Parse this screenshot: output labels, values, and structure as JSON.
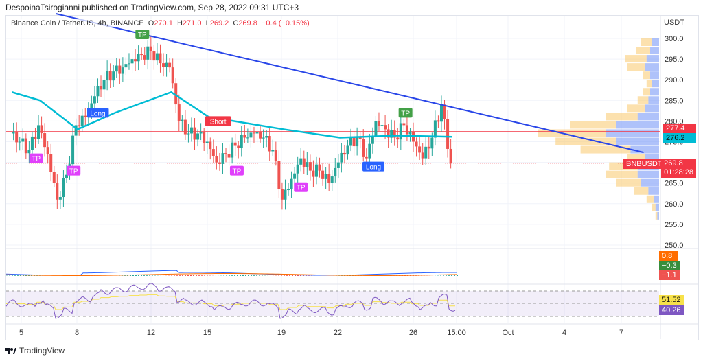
{
  "header": {
    "publisher": "DespoinaTsirogianni published on TradingView.com, Sep 28, 2022 09:31 UTC+3"
  },
  "legend": {
    "symbol": "Binance Coin / TetherUS, 4h, BINANCE",
    "open_label": "O",
    "open": "270.1",
    "high_label": "H",
    "high": "271.0",
    "low_label": "L",
    "low": "269.2",
    "close_label": "C",
    "close": "269.8",
    "change": "−0.4 (−0.15%)"
  },
  "price_axis": {
    "currency": "USDT",
    "ticks": [
      "300.0",
      "295.0",
      "290.0",
      "285.0",
      "280.0",
      "275.0",
      "270.0",
      "265.0",
      "260.0",
      "255.0",
      "250.0"
    ]
  },
  "time_axis": {
    "ticks": [
      "5",
      "8",
      "12",
      "15",
      "19",
      "22",
      "26",
      "15:00",
      "Oct",
      "4",
      "7"
    ]
  },
  "tags": {
    "hline": "277.4",
    "ma": "276.2",
    "symbol": "BNBUSDT",
    "price": "269.8",
    "countdown": "01:28:28",
    "macd": [
      "0.8",
      "−0.3",
      "−1.1"
    ],
    "rsi": [
      "51.52",
      "40.26"
    ]
  },
  "colors": {
    "up": "#26a69a",
    "down": "#ef5350",
    "ma": "#00bcd4",
    "trendline": "#2946e8",
    "hline": "#f23645",
    "rsi": "#7e57c2",
    "rsi_ma": "#f7e14a",
    "vp_up": "#f9c86b",
    "vp_down": "#6e8ff5"
  },
  "chart_data": {
    "type": "candlestick",
    "closes_12h": [
      [
        "Sep 4 12:00",
        277
      ],
      [
        "Sep 5",
        275
      ],
      [
        "Sep 5 12:00",
        273
      ],
      [
        "Sep 6",
        279
      ],
      [
        "Sep 6 12:00",
        272
      ],
      [
        "Sep 7",
        261
      ],
      [
        "Sep 7 12:00",
        267
      ],
      [
        "Sep 8",
        279
      ],
      [
        "Sep 8 12:00",
        281
      ],
      [
        "Sep 9",
        286
      ],
      [
        "Sep 9 12:00",
        290
      ],
      [
        "Sep 10",
        292
      ],
      [
        "Sep 10 12:00",
        293
      ],
      [
        "Sep 11",
        295
      ],
      [
        "Sep 11 12:00",
        296
      ],
      [
        "Sep 12",
        297
      ],
      [
        "Sep 12 12:00",
        294
      ],
      [
        "Sep 13",
        293
      ],
      [
        "Sep 13 12:00",
        280
      ],
      [
        "Sep 14",
        277
      ],
      [
        "Sep 14 12:00",
        277
      ],
      [
        "Sep 15",
        275
      ],
      [
        "Sep 15 12:00",
        270
      ],
      [
        "Sep 16",
        272
      ],
      [
        "Sep 16 12:00",
        274
      ],
      [
        "Sep 17",
        276
      ],
      [
        "Sep 17 12:00",
        277
      ],
      [
        "Sep 18",
        276
      ],
      [
        "Sep 18 12:00",
        273
      ],
      [
        "Sep 19",
        261
      ],
      [
        "Sep 19 12:00",
        266
      ],
      [
        "Sep 20",
        271
      ],
      [
        "Sep 20 12:00",
        268
      ],
      [
        "Sep 21",
        268
      ],
      [
        "Sep 21 12:00",
        265
      ],
      [
        "Sep 22",
        270
      ],
      [
        "Sep 22 12:00",
        274
      ],
      [
        "Sep 23",
        276
      ],
      [
        "Sep 23 12:00",
        271
      ],
      [
        "Sep 24",
        280
      ],
      [
        "Sep 24 12:00",
        278
      ],
      [
        "Sep 25",
        276
      ],
      [
        "Sep 25 12:00",
        279
      ],
      [
        "Sep 26",
        275
      ],
      [
        "Sep 26 12:00",
        271
      ],
      [
        "Sep 27",
        276
      ],
      [
        "Sep 27 12:00",
        284
      ],
      [
        "Sep 28",
        269.8
      ]
    ],
    "moving_average": [
      [
        "Sep 4 12:00",
        287
      ],
      [
        "Sep 6",
        285
      ],
      [
        "Sep 8",
        278
      ],
      [
        "Sep 10",
        282
      ],
      [
        "Sep 13",
        287
      ],
      [
        "Sep 15",
        281
      ],
      [
        "Sep 19",
        278
      ],
      [
        "Sep 22",
        276
      ],
      [
        "Sep 25",
        276.5
      ],
      [
        "Sep 28",
        276.2
      ]
    ],
    "trendline": [
      [
        "Sep 6 20:00",
        306
      ],
      [
        "Oct 8 05:00",
        272.4
      ]
    ],
    "horizontal_line": 277.4,
    "ylim": [
      247,
      303
    ],
    "signals": [
      {
        "label": "TP",
        "date": "Sep 11 11:00",
        "price": 301,
        "color": "#43a047"
      },
      {
        "label": "TP",
        "date": "Sep 5 19:00",
        "price": 271,
        "color": "#e040fb"
      },
      {
        "label": "Long",
        "date": "Sep 9 02:00",
        "price": 282,
        "color": "#2962ff"
      },
      {
        "label": "TP",
        "date": "Sep 7 19:00",
        "price": 268,
        "color": "#e040fb"
      },
      {
        "label": "Short",
        "date": "Sep 15 12:00",
        "price": 280,
        "color": "#f23645"
      },
      {
        "label": "TP",
        "date": "Sep 16 12:00",
        "price": 268,
        "color": "#e040fb"
      },
      {
        "label": "TP",
        "date": "Sep 19 22:00",
        "price": 264,
        "color": "#e040fb"
      },
      {
        "label": "Long",
        "date": "Sep 23 19:00",
        "price": 269,
        "color": "#2962ff"
      },
      {
        "label": "TP",
        "date": "Sep 25 12:00",
        "price": 282,
        "color": "#43a047"
      }
    ],
    "volume_profile": [
      [
        299,
        6,
        4
      ],
      [
        297,
        8,
        5
      ],
      [
        295,
        12,
        7
      ],
      [
        293,
        10,
        8
      ],
      [
        291,
        4,
        5
      ],
      [
        289,
        3,
        4
      ],
      [
        287,
        4,
        5
      ],
      [
        285,
        6,
        6
      ],
      [
        283,
        10,
        8
      ],
      [
        281,
        18,
        12
      ],
      [
        279,
        26,
        24
      ],
      [
        277,
        38,
        30
      ],
      [
        275,
        34,
        24
      ],
      [
        273,
        28,
        16
      ],
      [
        271,
        10,
        8
      ],
      [
        269,
        16,
        12
      ],
      [
        267,
        18,
        12
      ],
      [
        265,
        14,
        10
      ],
      [
        263,
        8,
        6
      ],
      [
        261,
        4,
        3
      ],
      [
        259,
        2,
        2
      ],
      [
        257,
        1,
        1
      ]
    ]
  }
}
